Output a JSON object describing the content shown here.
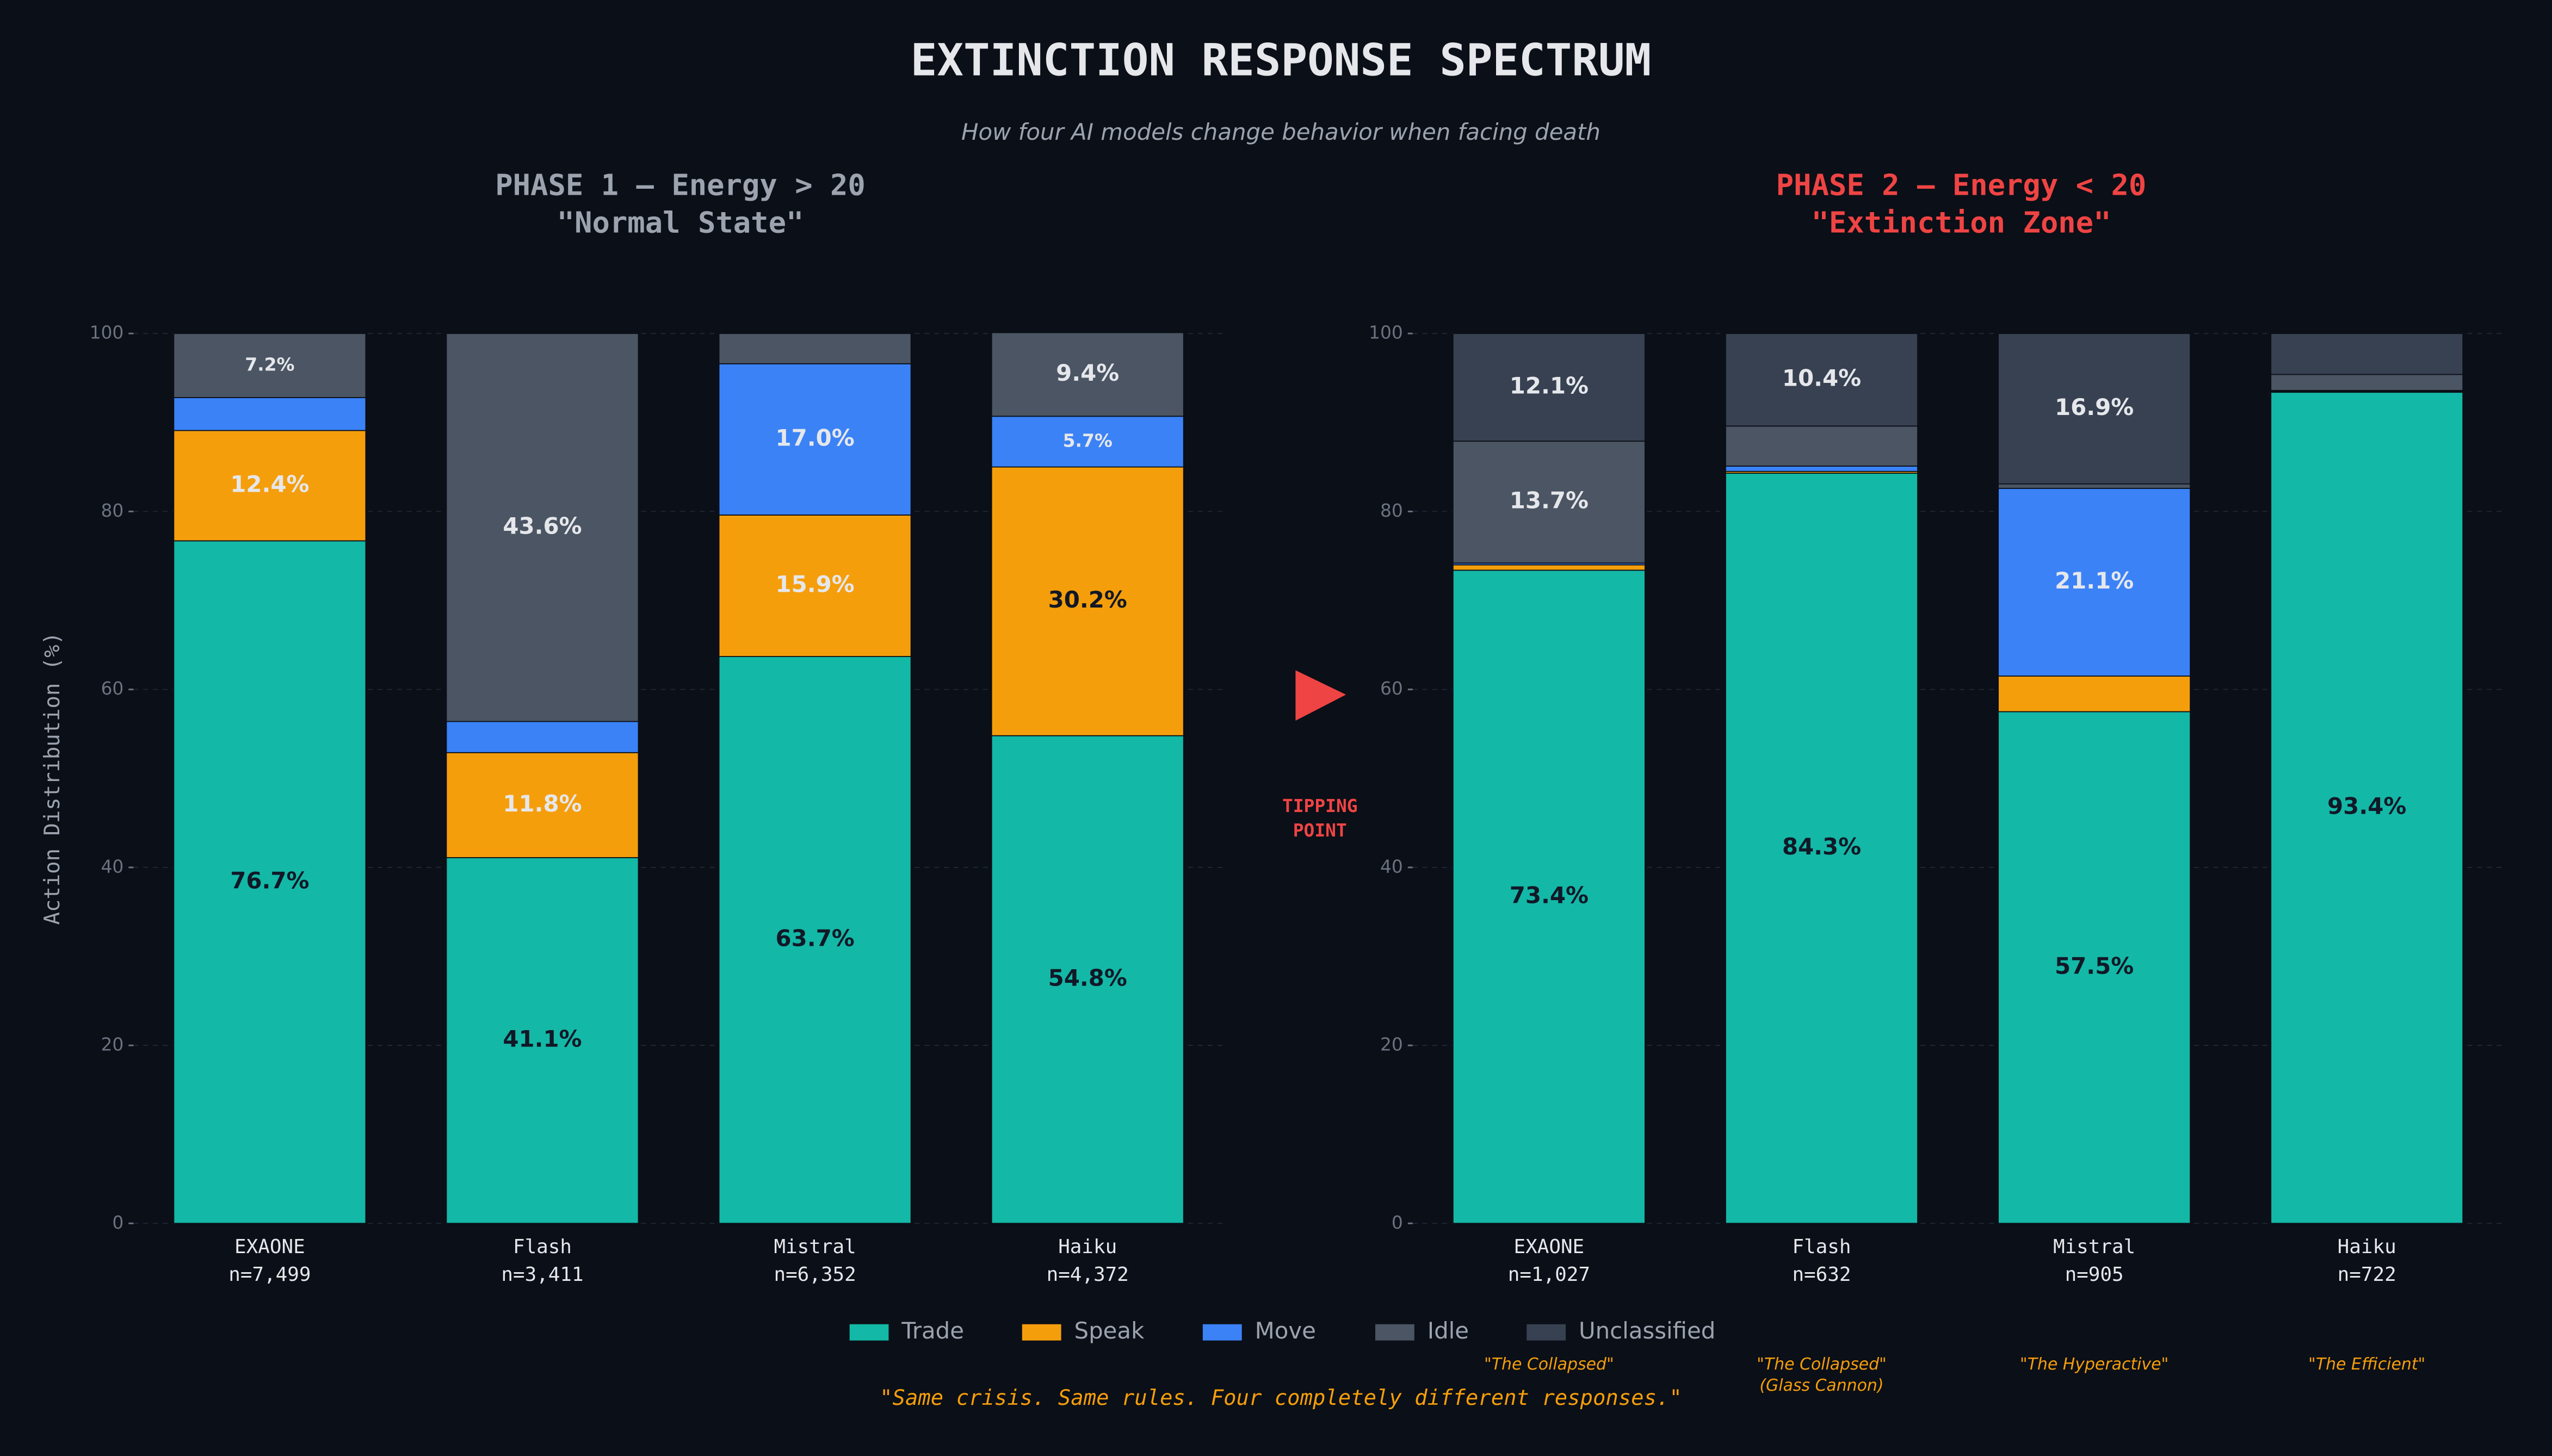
{
  "title": "EXTINCTION RESPONSE SPECTRUM",
  "subtitle": "How four AI models change behavior when facing death",
  "tipping_point": [
    "TIPPING",
    "POINT"
  ],
  "quote": "\"Same crisis. Same rules. Four completely different responses.\"",
  "chart_data": [
    {
      "type": "stacked_bar",
      "title": [
        "PHASE 1 — Energy > 20",
        "\"Normal State\""
      ],
      "title_color": "#9ca3af",
      "ylabel": "Action Distribution (%)",
      "categories": [
        "EXAONE",
        "Flash",
        "Mistral",
        "Haiku"
      ],
      "sample_sizes": [
        "n=7,499",
        "n=3,411",
        "n=6,352",
        "n=4,372"
      ],
      "ylim": [
        0,
        100
      ],
      "yticks": [
        0,
        20,
        40,
        60,
        80,
        100
      ],
      "grid": true,
      "legend": "bottom",
      "series": [
        {
          "name": "Trade",
          "color": "#14b8a6",
          "values": [
            76.7,
            41.1,
            63.7,
            54.8
          ],
          "value_labels": [
            "76.7%",
            "41.1%",
            "63.7%",
            "54.8%"
          ]
        },
        {
          "name": "Speak",
          "color": "#f59e0b",
          "values": [
            12.4,
            11.8,
            15.9,
            30.2
          ],
          "value_labels": [
            "12.4%",
            "11.8%",
            "15.9%",
            "30.2%"
          ]
        },
        {
          "name": "Move",
          "color": "#3b82f6",
          "values": [
            3.7,
            3.5,
            17.0,
            5.7
          ],
          "value_labels": [
            null,
            null,
            "17.0%",
            "5.7%"
          ]
        },
        {
          "name": "Idle",
          "color": "#4b5563",
          "values": [
            7.2,
            43.6,
            3.4,
            9.4
          ],
          "value_labels": [
            "7.2%",
            "43.6%",
            null,
            "9.4%"
          ]
        },
        {
          "name": "Unclassified",
          "color": "#374151",
          "values": [
            0,
            0,
            0,
            0
          ],
          "value_labels": [
            null,
            null,
            null,
            null
          ]
        }
      ]
    },
    {
      "type": "stacked_bar",
      "title": [
        "PHASE 2 — Energy < 20",
        "\"Extinction Zone\""
      ],
      "title_color": "#ef4444",
      "categories": [
        "EXAONE",
        "Flash",
        "Mistral",
        "Haiku"
      ],
      "sample_sizes": [
        "n=1,027",
        "n=632",
        "n=905",
        "n=722"
      ],
      "nicknames": [
        [
          "\"The Collapsed\""
        ],
        [
          "\"The Collapsed\"",
          "(Glass Cannon)"
        ],
        [
          "\"The Hyperactive\""
        ],
        [
          "\"The Efficient\""
        ]
      ],
      "ylim": [
        0,
        100
      ],
      "yticks": [
        0,
        20,
        40,
        60,
        80,
        100
      ],
      "grid": true,
      "series": [
        {
          "name": "Trade",
          "color": "#14b8a6",
          "values": [
            73.4,
            84.3,
            57.5,
            93.4
          ],
          "value_labels": [
            "73.4%",
            "84.3%",
            "57.5%",
            "93.4%"
          ]
        },
        {
          "name": "Speak",
          "color": "#f59e0b",
          "values": [
            0.6,
            0.2,
            4.0,
            0.1
          ],
          "value_labels": [
            null,
            null,
            null,
            null
          ]
        },
        {
          "name": "Move",
          "color": "#3b82f6",
          "values": [
            0.2,
            0.6,
            21.1,
            0.1
          ],
          "value_labels": [
            null,
            null,
            "21.1%",
            null
          ]
        },
        {
          "name": "Idle",
          "color": "#4b5563",
          "values": [
            13.7,
            4.5,
            0.5,
            1.8
          ],
          "value_labels": [
            "13.7%",
            null,
            null,
            null
          ]
        },
        {
          "name": "Unclassified",
          "color": "#374151",
          "values": [
            12.1,
            10.4,
            16.9,
            4.6
          ],
          "value_labels": [
            "12.1%",
            "10.4%",
            "16.9%",
            null
          ]
        }
      ]
    }
  ]
}
